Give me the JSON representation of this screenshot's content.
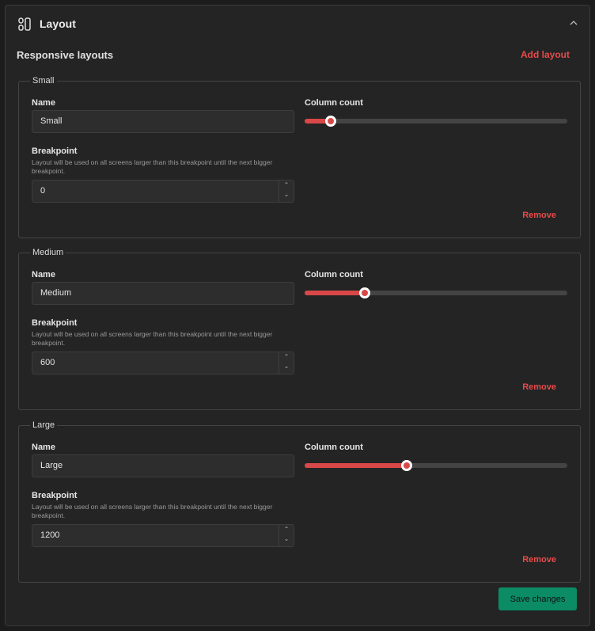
{
  "header": {
    "title": "Layout",
    "icon": "layout-icon",
    "collapse_icon": "chevron-up-icon"
  },
  "section": {
    "title": "Responsive layouts",
    "add_label": "Add layout"
  },
  "labels": {
    "name": "Name",
    "column_count": "Column count",
    "breakpoint": "Breakpoint",
    "breakpoint_help": "Layout will be used on all screens larger than this breakpoint until the next bigger breakpoint.",
    "remove": "Remove"
  },
  "layouts": [
    {
      "legend": "Small",
      "name": "Small",
      "breakpoint": "0",
      "column_fraction": 0.1
    },
    {
      "legend": "Medium",
      "name": "Medium",
      "breakpoint": "600",
      "column_fraction": 0.23
    },
    {
      "legend": "Large",
      "name": "Large",
      "breakpoint": "1200",
      "column_fraction": 0.39
    }
  ],
  "footer": {
    "save_label": "Save changes"
  },
  "colors": {
    "accent": "#d94848",
    "save": "#0b8c64",
    "background": "#242424"
  }
}
